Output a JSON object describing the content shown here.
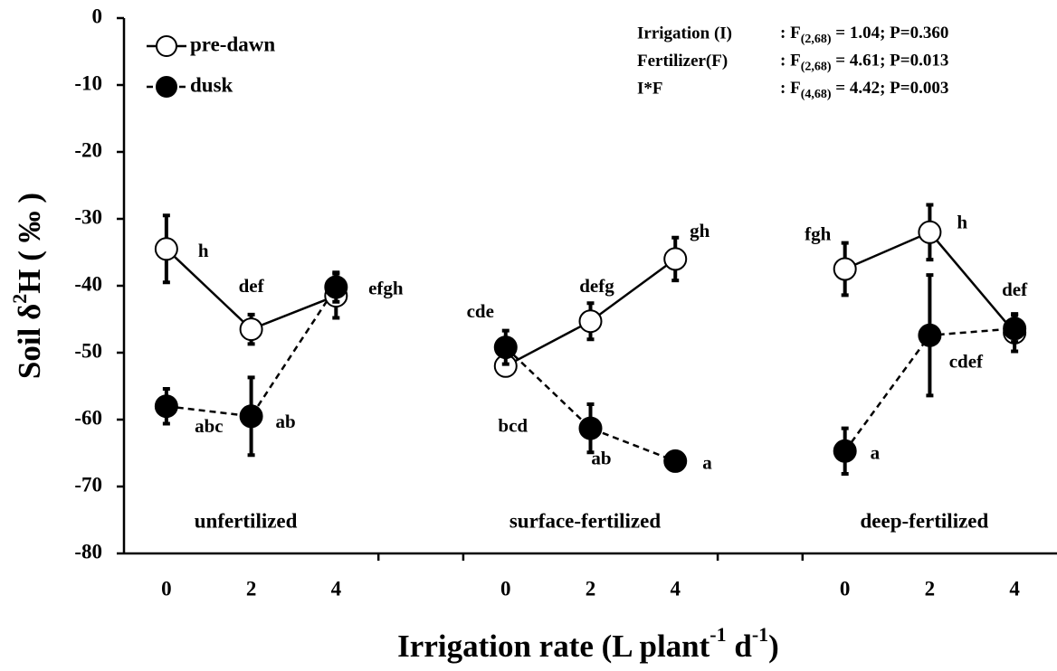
{
  "chart_data": {
    "type": "line",
    "x_label_parts": [
      "Irrigation rate (L plant",
      "-1",
      " d",
      "-1",
      ")"
    ],
    "y_label_parts": [
      "Soil δ",
      "2",
      "H ( ‰ )"
    ],
    "categories": [
      "0",
      "2",
      "4",
      null,
      "0",
      "2",
      "4",
      null,
      "0",
      "2",
      "4"
    ],
    "group_labels": [
      "unfertilized",
      "surface-fertilized",
      "deep-fertilized"
    ],
    "ylim": [
      -80,
      0
    ],
    "yticks": [
      0,
      -10,
      -20,
      -30,
      -40,
      -50,
      -60,
      -70,
      -80
    ],
    "grid": false,
    "legend": "upper left",
    "series": [
      {
        "name": "pre-dawn",
        "color": "#000000",
        "marker_fill": "#ffffff",
        "dash": false,
        "values": [
          -34.5,
          -46.5,
          -41.5,
          null,
          -52,
          -45.3,
          -36,
          null,
          -37.5,
          -32,
          -47
        ],
        "errors": [
          5,
          2.2,
          3.3,
          null,
          1,
          2.7,
          3.2,
          null,
          3.9,
          4.1,
          2.8
        ],
        "point_labels": [
          "h",
          "def",
          null,
          null,
          "bcd",
          "defg",
          "gh",
          null,
          "fgh",
          "h",
          null
        ]
      },
      {
        "name": "dusk",
        "color": "#000000",
        "marker_fill": "#000000",
        "dash": true,
        "values": [
          -58,
          -59.5,
          -40.2,
          null,
          -49.2,
          -61.3,
          -66.2,
          null,
          -64.7,
          -47.4,
          -46.4
        ],
        "errors": [
          2.6,
          5.8,
          2.2,
          null,
          2.5,
          3.6,
          0.5,
          null,
          3.4,
          9,
          2
        ],
        "point_labels": [
          "abc",
          "ab",
          "efgh",
          null,
          "cde",
          "ab",
          "a",
          null,
          "a",
          "cdef",
          "def"
        ]
      }
    ],
    "stats": [
      {
        "label": "Irrigation (I)",
        "prefix": ": F",
        "sub": "(2,68)",
        "rest": " = 1.04; P=0.360"
      },
      {
        "label": "Fertilizer(F)",
        "prefix": ": F",
        "sub": "(2,68)",
        "rest": " = 4.61; P=0.013"
      },
      {
        "label": "I*F",
        "prefix": ": F",
        "sub": "(4,68)",
        "rest": " = 4.42; P=0.003"
      }
    ]
  }
}
